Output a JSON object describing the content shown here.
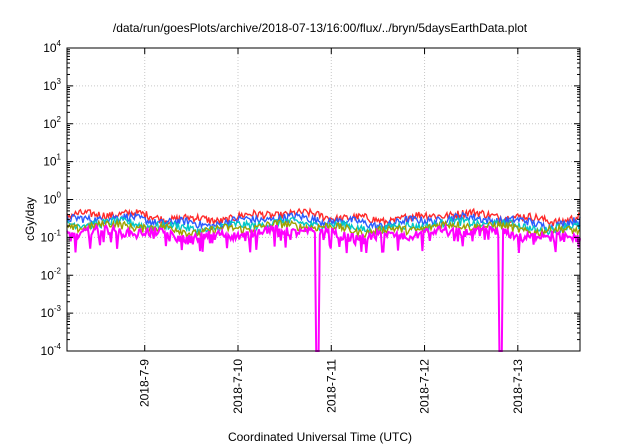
{
  "chart_data": {
    "type": "line",
    "title": "/data/run/goesPlots/archive/2018-07-13/16:00/flux/../bryn/5daysEarthData.plot",
    "xlabel": "Coordinated Universal Time (UTC)",
    "ylabel": "cGy/day",
    "y_scale": "log",
    "ylim": [
      0.0001,
      10000
    ],
    "y_ticks": [
      {
        "base": "10",
        "exp": "4"
      },
      {
        "base": "10",
        "exp": "3"
      },
      {
        "base": "10",
        "exp": "2"
      },
      {
        "base": "10",
        "exp": "1"
      },
      {
        "base": "10",
        "exp": "0"
      },
      {
        "base": "10",
        "exp": "-1"
      },
      {
        "base": "10",
        "exp": "-2"
      },
      {
        "base": "10",
        "exp": "-3"
      },
      {
        "base": "10",
        "exp": "-4"
      }
    ],
    "x_range": [
      "2018-07-08 04:00",
      "2018-07-13 16:00"
    ],
    "x_ticks": [
      "2018-7-9",
      "2018-7-10",
      "2018-7-11",
      "2018-7-12",
      "2018-7-13"
    ],
    "grid": true,
    "legend": "none",
    "series": [
      {
        "color": "#ff2a2a",
        "level": 0.36,
        "dips": []
      },
      {
        "color": "#2a5cff",
        "level": 0.28,
        "dips": []
      },
      {
        "color": "#00c8c8",
        "level": 0.21,
        "dips": []
      },
      {
        "color": "#a0a000",
        "level": 0.18,
        "dips": []
      },
      {
        "color": "#ff00ff",
        "level": 0.13,
        "dips": [
          [
            "2018-07-10 20:00",
            "2018-07-10 21:00"
          ],
          [
            "2018-07-12 19:00",
            "2018-07-12 20:00"
          ]
        ]
      }
    ]
  }
}
